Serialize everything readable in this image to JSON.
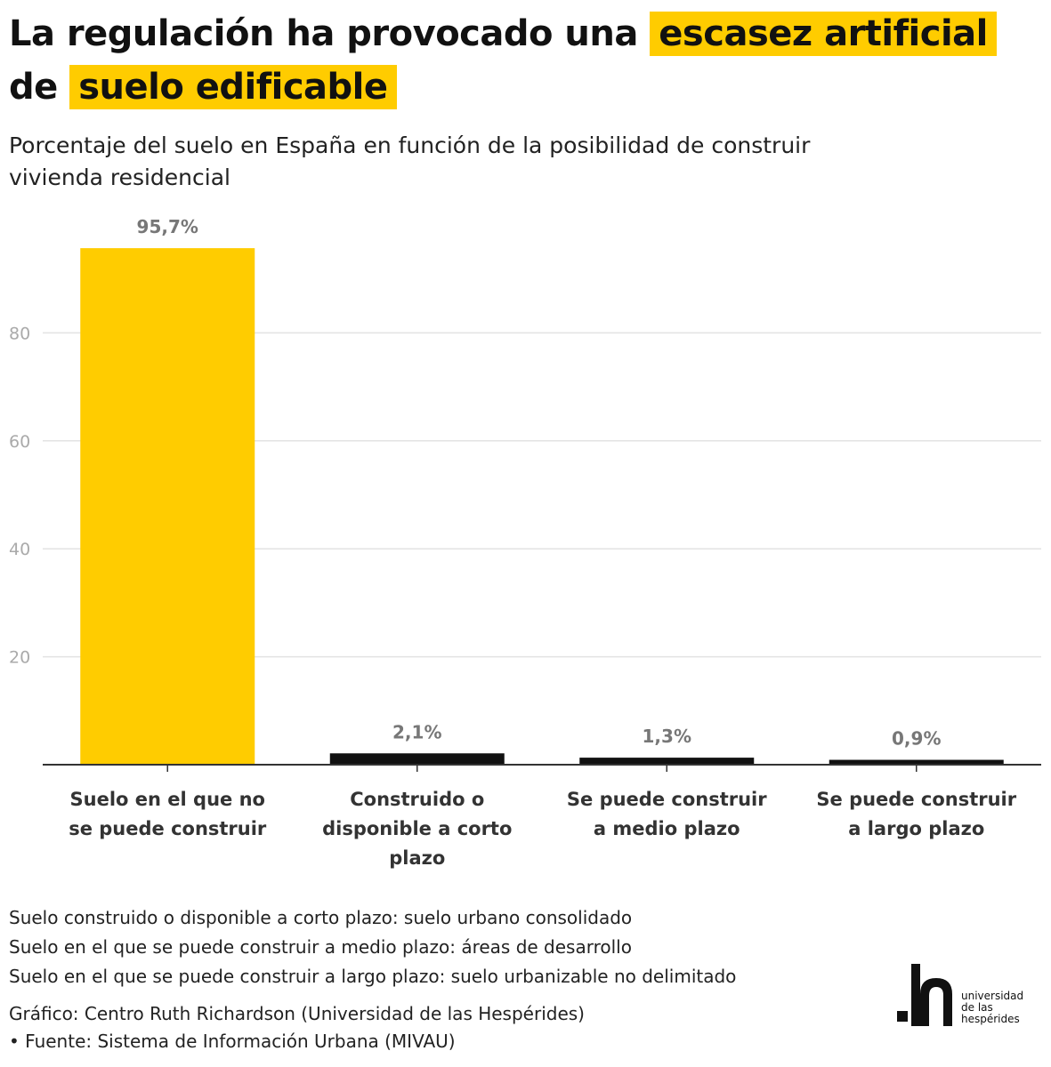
{
  "header": {
    "title_part1": "La regulación ha provocado una",
    "title_highlight1": "escasez artificial",
    "title_part2": "de",
    "title_highlight2": "suelo edificable",
    "subtitle": "Porcentaje del suelo en España en función de la posibilidad de construir vivienda residencial"
  },
  "chart_data": {
    "type": "bar",
    "title": "La regulación ha provocado una escasez artificial de suelo edificable",
    "subtitle": "Porcentaje del suelo en España en función de la posibilidad de construir vivienda residencial",
    "categories": [
      "Suelo en el que no se puede construir",
      "Construido o disponible a corto plazo",
      "Se puede construir a medio plazo",
      "Se puede construir a largo plazo"
    ],
    "values": [
      95.7,
      2.1,
      1.3,
      0.9
    ],
    "value_labels": [
      "95,7%",
      "2,1%",
      "1,3%",
      "0,9%"
    ],
    "bar_colors": [
      "#ffcc00",
      "#111111",
      "#111111",
      "#111111"
    ],
    "yticks": [
      20,
      40,
      60,
      80
    ],
    "ylim": [
      0,
      100
    ],
    "grid": true,
    "xlabel": "",
    "ylabel": ""
  },
  "notes": [
    "Suelo construido o disponible a corto plazo: suelo urbano consolidado",
    "Suelo en el que se puede construir a medio plazo: áreas de desarrollo",
    "Suelo en el que se puede construir a largo plazo: suelo urbanizable no delimitado"
  ],
  "credits": {
    "graphic": "Gráfico: Centro Ruth Richardson (Universidad de las Hespérides)",
    "source": " • Fuente: Sistema de Información Urbana (MIVAU)"
  },
  "logo": {
    "line1": "universidad",
    "line2": "de las",
    "line3": "hespérides"
  },
  "colors": {
    "accent": "#ffcc00",
    "bar_dark": "#111111",
    "gridline": "#e3e3e3",
    "tick_label": "#aaaaaa",
    "value_label": "#777777"
  }
}
